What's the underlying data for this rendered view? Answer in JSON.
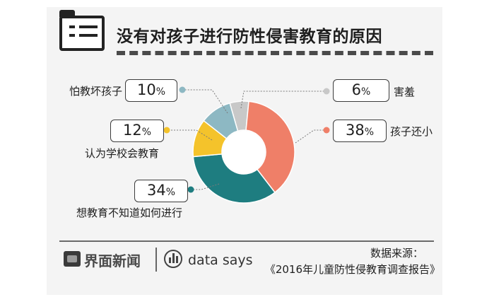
{
  "header": {
    "title": "没有对孩子进行防性侵害教育的原因",
    "icon": "list-folder-icon"
  },
  "chart_data": {
    "type": "pie",
    "title": "没有对孩子进行防性侵害教育的原因",
    "categories": [
      "害羞",
      "孩子还小",
      "想教育不知道如何进行",
      "认为学校会教育",
      "怕教坏孩子"
    ],
    "values": [
      6,
      38,
      34,
      12,
      10
    ],
    "units": "%",
    "colors": [
      "#c8c8c8",
      "#ef7f68",
      "#1e7d80",
      "#f4c32b",
      "#8db8c3"
    ],
    "donut": true
  },
  "callouts": [
    {
      "value": "6",
      "pct": "%",
      "label": "害羞"
    },
    {
      "value": "38",
      "pct": "%",
      "label": "孩子还小"
    },
    {
      "value": "34",
      "pct": "%",
      "label": "想教育不知道如何进行"
    },
    {
      "value": "12",
      "pct": "%",
      "label": "认为学校会教育"
    },
    {
      "value": "10",
      "pct": "%",
      "label": "怕教坏孩子"
    }
  ],
  "footer": {
    "brand": "界面新闻",
    "brand_icon": "jiemian-logo-icon",
    "tagline": "data says",
    "tagline_icon": "data-says-icon",
    "source_label": "数据来源：",
    "source": "《2016年儿童防性侵教育调查报告》"
  }
}
